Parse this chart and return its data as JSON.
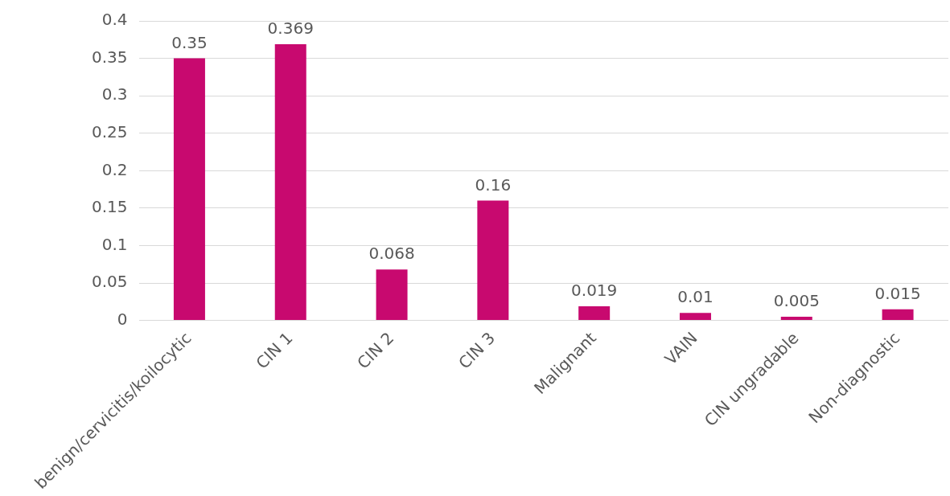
{
  "chart_data": {
    "type": "bar",
    "categories": [
      "benign/cervicitis/koilocytic",
      "CIN 1",
      "CIN 2",
      "CIN 3",
      "Malignant",
      "VAIN",
      "CIN ungradable",
      "Non-diagnostic"
    ],
    "values": [
      0.35,
      0.369,
      0.068,
      0.16,
      0.019,
      0.01,
      0.005,
      0.015
    ],
    "color": "#c8096f",
    "ylim": [
      0,
      0.4
    ],
    "yticks": [
      0,
      0.05,
      0.1,
      0.15,
      0.2,
      0.25,
      0.3,
      0.35,
      0.4
    ],
    "grid": "y",
    "data_labels": true,
    "legend": false
  }
}
